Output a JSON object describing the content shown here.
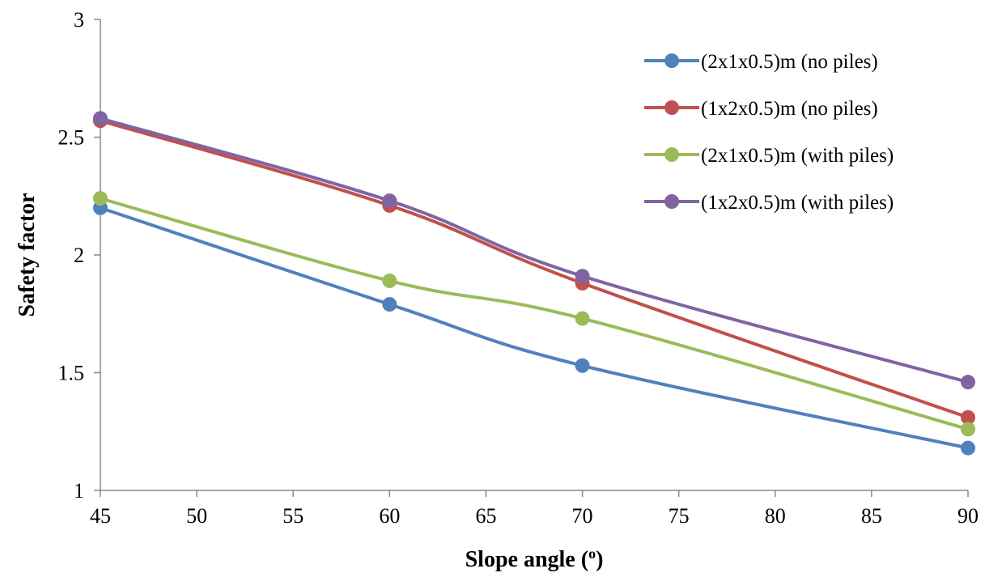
{
  "chart_data": {
    "type": "line",
    "title": "",
    "xlabel": "Slope angle (",
    "xlabel_sup": "o",
    "xlabel_suffix": ")",
    "ylabel": "Safety factor",
    "xlim": [
      45,
      90
    ],
    "ylim": [
      1,
      3
    ],
    "xticks": [
      45,
      50,
      55,
      60,
      65,
      70,
      75,
      80,
      85,
      90
    ],
    "yticks": [
      1,
      1.5,
      2,
      2.5,
      3
    ],
    "grid": false,
    "legend_position": "top-right",
    "x": [
      45,
      60,
      70,
      90
    ],
    "series": [
      {
        "name": "(2x1x0.5)m (no piles)",
        "color": "#4F81BD",
        "values": [
          2.2,
          1.79,
          1.53,
          1.18
        ]
      },
      {
        "name": "(1x2x0.5)m (no piles)",
        "color": "#C0504D",
        "values": [
          2.57,
          2.21,
          1.88,
          1.31
        ]
      },
      {
        "name": "(2x1x0.5)m (with piles)",
        "color": "#9BBB59",
        "values": [
          2.24,
          1.89,
          1.73,
          1.26
        ]
      },
      {
        "name": "(1x2x0.5)m (with piles)",
        "color": "#8064A2",
        "values": [
          2.58,
          2.23,
          1.91,
          1.46
        ]
      }
    ]
  }
}
